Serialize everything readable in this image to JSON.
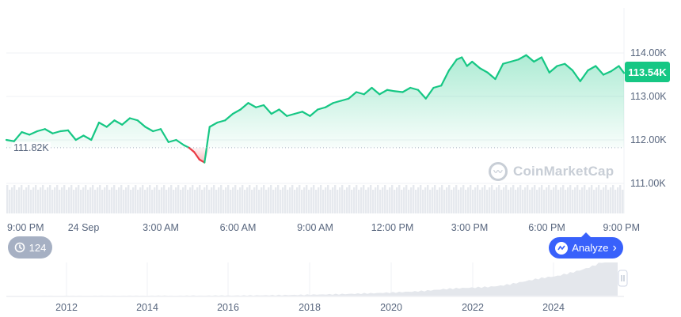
{
  "chart_data": {
    "type": "area",
    "baseline_value": 111.82,
    "current_value": 113.54,
    "ylim": [
      110.5,
      115.0
    ],
    "xlim": [
      0,
      24
    ],
    "y_ticks": [
      {
        "value": 111,
        "label": "111.00K"
      },
      {
        "value": 112,
        "label": "112.00K"
      },
      {
        "value": 113,
        "label": "113.00K"
      },
      {
        "value": 114,
        "label": "114.00K"
      }
    ],
    "x_ticks": [
      {
        "value": 0,
        "label": "9:00 PM"
      },
      {
        "value": 3,
        "label": "24 Sep"
      },
      {
        "value": 6,
        "label": "3:00 AM"
      },
      {
        "value": 9,
        "label": "6:00 AM"
      },
      {
        "value": 12,
        "label": "9:00 AM"
      },
      {
        "value": 15,
        "label": "12:00 PM"
      },
      {
        "value": 18,
        "label": "3:00 PM"
      },
      {
        "value": 21,
        "label": "6:00 PM"
      },
      {
        "value": 24,
        "label": "9:00 PM"
      }
    ],
    "series": [
      {
        "x": [
          0,
          0.3,
          0.6,
          0.9,
          1.2,
          1.5,
          1.8,
          2.1,
          2.4,
          2.7,
          3.0,
          3.3,
          3.6,
          3.9,
          4.2,
          4.5,
          4.8,
          5.1,
          5.4,
          5.7,
          6.0,
          6.3,
          6.6,
          6.9,
          7.1,
          7.3,
          7.5,
          7.7,
          7.9,
          8.2,
          8.5,
          8.8,
          9.1,
          9.4,
          9.7,
          10.0,
          10.3,
          10.6,
          10.9,
          11.2,
          11.5,
          11.8,
          12.1,
          12.4,
          12.7,
          13.0,
          13.3,
          13.6,
          13.9,
          14.2,
          14.5,
          14.8,
          15.1,
          15.4,
          15.7,
          16.0,
          16.3,
          16.6,
          16.9,
          17.2,
          17.5,
          17.7,
          17.9,
          18.1,
          18.4,
          18.7,
          19.0,
          19.3,
          19.6,
          19.9,
          20.2,
          20.5,
          20.8,
          21.1,
          21.4,
          21.7,
          22.0,
          22.3,
          22.6,
          22.9,
          23.2,
          23.5,
          23.8,
          24.0
        ],
        "y": [
          112.0,
          111.97,
          112.18,
          112.12,
          112.2,
          112.25,
          112.15,
          112.2,
          112.22,
          112.0,
          112.1,
          112.0,
          112.4,
          112.3,
          112.45,
          112.35,
          112.5,
          112.45,
          112.3,
          112.2,
          112.25,
          111.95,
          112.0,
          111.88,
          111.82,
          111.72,
          111.55,
          111.48,
          112.3,
          112.4,
          112.45,
          112.6,
          112.7,
          112.85,
          112.75,
          112.8,
          112.6,
          112.7,
          112.55,
          112.6,
          112.65,
          112.55,
          112.7,
          112.75,
          112.85,
          112.9,
          112.95,
          113.1,
          113.05,
          113.2,
          113.05,
          113.15,
          113.12,
          113.1,
          113.2,
          113.15,
          112.95,
          113.2,
          113.25,
          113.6,
          113.85,
          113.9,
          113.7,
          113.8,
          113.65,
          113.55,
          113.4,
          113.75,
          113.8,
          113.85,
          113.95,
          113.8,
          113.9,
          113.55,
          113.7,
          113.75,
          113.6,
          113.35,
          113.6,
          113.7,
          113.5,
          113.58,
          113.7,
          113.54
        ]
      }
    ],
    "navigator": {
      "x_ticks": [
        "2012",
        "2014",
        "2016",
        "2018",
        "2020",
        "2022",
        "2024"
      ]
    },
    "colors": {
      "up": "#16c784",
      "down": "#ea3943",
      "grid": "#eff2f5",
      "volume": "#e6e9ee"
    }
  },
  "labels": {
    "baseline": "111.82K",
    "current": "113.54K",
    "watermark": "CoinMarketCap",
    "history_count": "124",
    "analyze": "Analyze",
    "analyze_chevron": "›"
  }
}
